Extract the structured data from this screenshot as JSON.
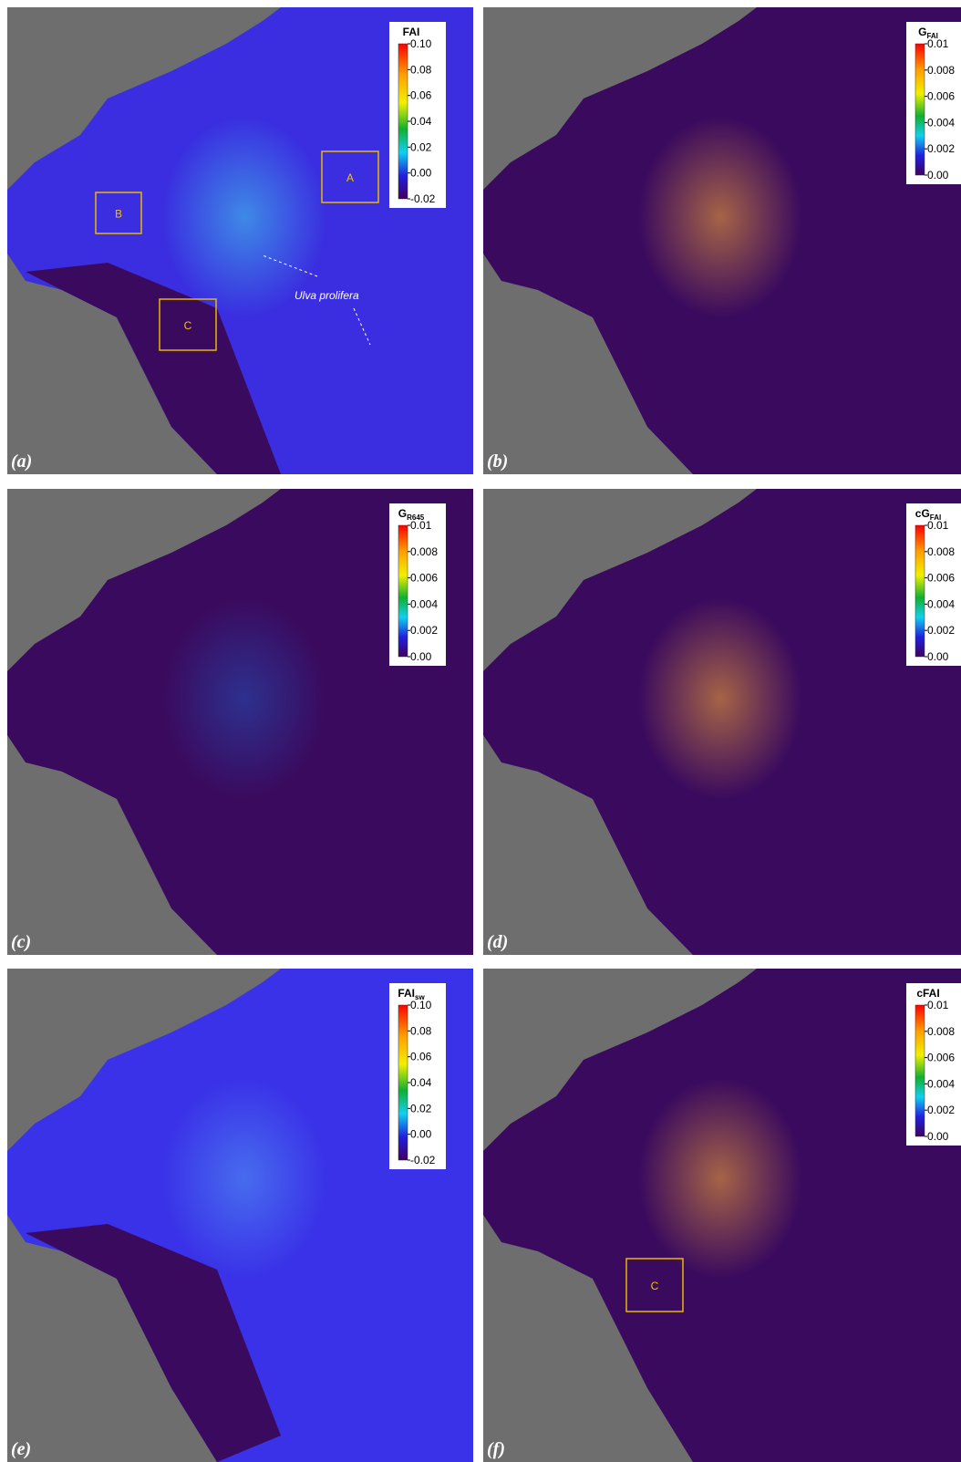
{
  "panels": [
    {
      "label": "(a)",
      "legend": {
        "title": "FAI",
        "ticks": [
          "0.10",
          "0.08",
          "0.06",
          "0.04",
          "0.02",
          "0.00",
          "-0.02"
        ]
      },
      "boxes": [
        "A",
        "B",
        "C"
      ],
      "annotation": "Ulva prolifera"
    },
    {
      "label": "(b)",
      "legend": {
        "title": "G",
        "subscript": "FAI",
        "ticks": [
          "0.01",
          "0.008",
          "0.006",
          "0.004",
          "0.002",
          "0.00"
        ]
      }
    },
    {
      "label": "(c)",
      "legend": {
        "title": "G",
        "subscript": "R645",
        "ticks": [
          "0.01",
          "0.008",
          "0.006",
          "0.004",
          "0.002",
          "0.00"
        ]
      }
    },
    {
      "label": "(d)",
      "legend": {
        "title": "cG",
        "subscript": "FAI",
        "ticks": [
          "0.01",
          "0.008",
          "0.006",
          "0.004",
          "0.002",
          "0.00"
        ]
      }
    },
    {
      "label": "(e)",
      "legend": {
        "title": "FAI",
        "subscript": "sw",
        "ticks": [
          "0.10",
          "0.08",
          "0.06",
          "0.04",
          "0.02",
          "0.00",
          "-0.02"
        ]
      }
    },
    {
      "label": "(f)",
      "legend": {
        "title": "cFAI",
        "ticks": [
          "0.01",
          "0.008",
          "0.006",
          "0.004",
          "0.002",
          "0.00"
        ]
      },
      "boxes": [
        "C"
      ]
    }
  ]
}
